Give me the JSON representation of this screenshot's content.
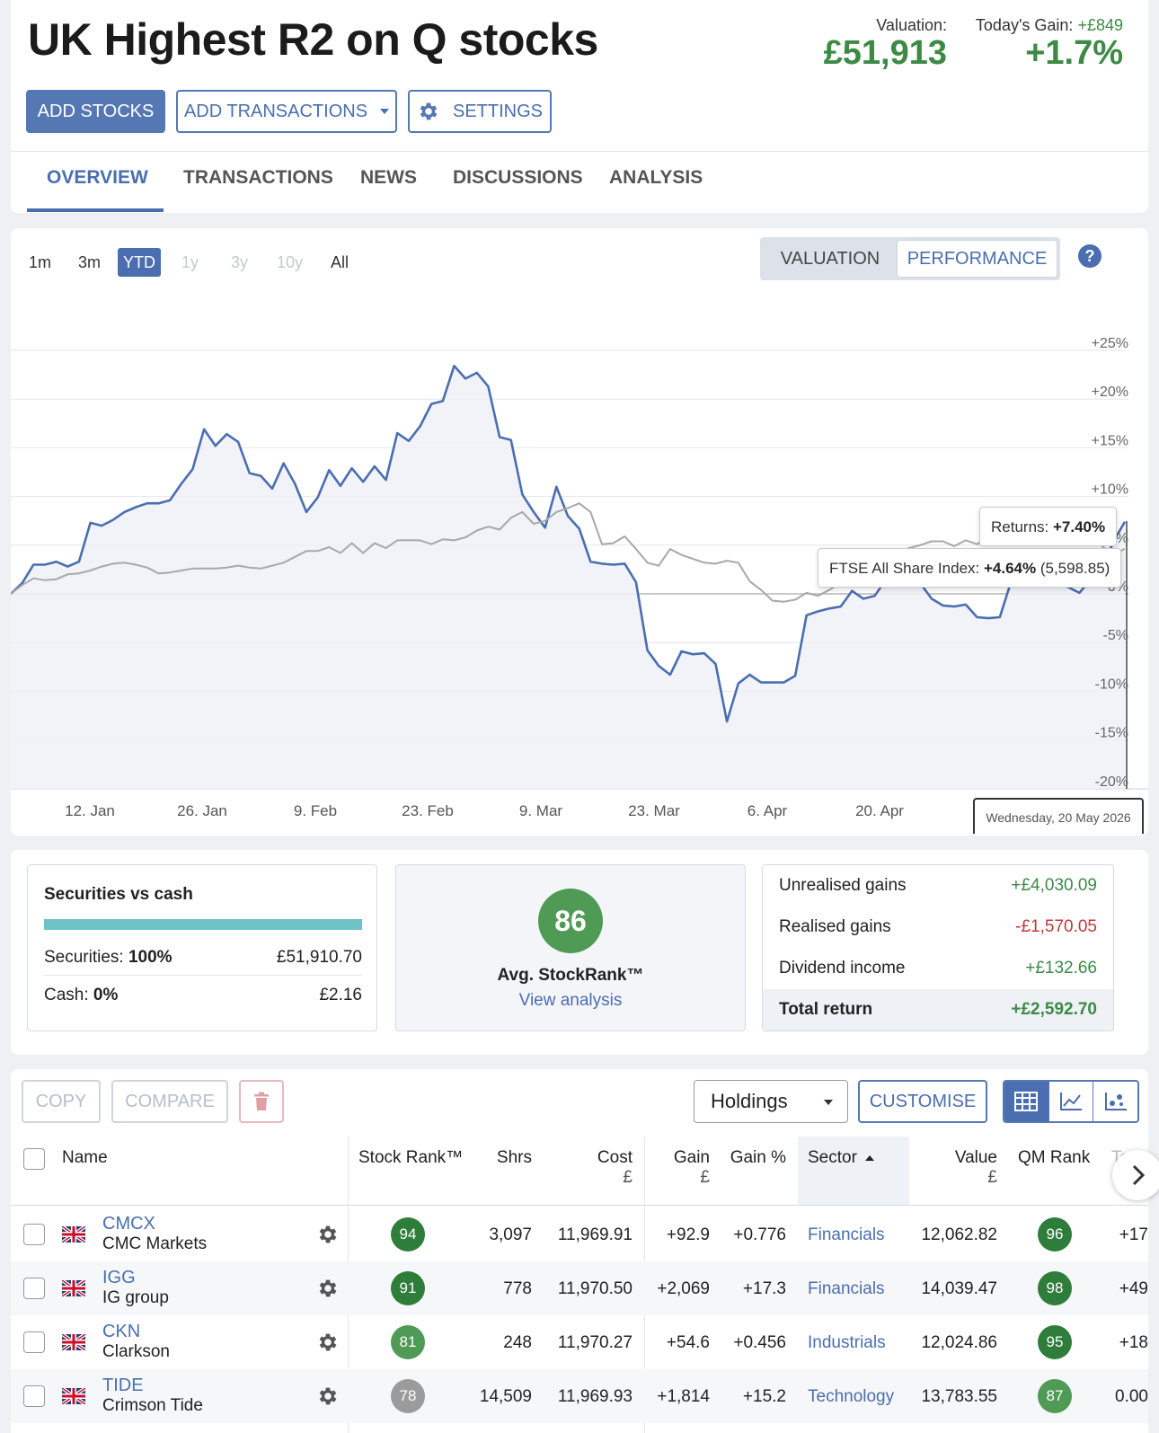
{
  "page": {
    "title": "UK Highest R2 on Q stocks",
    "valuation_label": "Valuation:",
    "valuation_value": "£51,913",
    "todays_gain_label": "Today's Gain:",
    "todays_gain_amount": "+£849",
    "todays_gain_pct": "+1.7%"
  },
  "actions": {
    "add_stocks": "ADD STOCKS",
    "add_transactions": "ADD TRANSACTIONS",
    "settings": "SETTINGS"
  },
  "tabs": [
    {
      "label": "OVERVIEW",
      "active": true
    },
    {
      "label": "TRANSACTIONS"
    },
    {
      "label": "NEWS"
    },
    {
      "label": "DISCUSSIONS"
    },
    {
      "label": "ANALYSIS"
    }
  ],
  "chart_controls": {
    "ranges": [
      {
        "label": "1m"
      },
      {
        "label": "3m"
      },
      {
        "label": "YTD",
        "active": true
      },
      {
        "label": "1y",
        "disabled": true
      },
      {
        "label": "3y",
        "disabled": true
      },
      {
        "label": "10y",
        "disabled": true
      },
      {
        "label": "All"
      }
    ],
    "modes": [
      "VALUATION",
      "PERFORMANCE"
    ],
    "active_mode": "PERFORMANCE",
    "help": "?"
  },
  "chart_data": {
    "type": "line",
    "x_ticks": [
      "12. Jan",
      "26. Jan",
      "9. Feb",
      "23. Feb",
      "9. Mar",
      "23. Mar",
      "6. Apr",
      "20. Apr"
    ],
    "y_ticks": [
      "+25%",
      "+20%",
      "+15%",
      "+10%",
      "+5%",
      "0%",
      "-5%",
      "-10%",
      "-15%",
      "-20%"
    ],
    "ylim": [
      -20,
      26
    ],
    "series": [
      {
        "name": "Returns",
        "color": "#4a6eb0",
        "values": [
          0,
          1.1,
          3,
          3,
          3.3,
          2.8,
          3.3,
          7.3,
          7,
          7.6,
          8.4,
          8.9,
          9.3,
          9.3,
          9.6,
          11.3,
          12.8,
          16.9,
          15.2,
          16.4,
          15.6,
          12.4,
          12.1,
          10.8,
          13.4,
          11.3,
          8.4,
          9.9,
          12.7,
          11.1,
          12.9,
          11.5,
          13.1,
          11.7,
          16.5,
          15.7,
          17.2,
          19.5,
          19.8,
          23.4,
          22.1,
          22.7,
          21.3,
          16.1,
          15.8,
          10.2,
          8.4,
          6.8,
          11,
          8,
          6.7,
          3.3,
          3.1,
          3,
          3.1,
          1.2,
          -5.8,
          -7.4,
          -8.3,
          -5.9,
          -6.2,
          -6.1,
          -7.2,
          -13.1,
          -9.2,
          -8.3,
          -9.1,
          -9.1,
          -9.1,
          -8.4,
          -2.2,
          -1.8,
          -1.5,
          -1.3,
          0.3,
          -0.5,
          -0.2,
          1.5,
          1.2,
          1.4,
          1.1,
          -0.5,
          -1.2,
          -1.3,
          -1.1,
          -2.4,
          -2.5,
          -2.4,
          1.3,
          1.9,
          1.4,
          1.3,
          1.2,
          0.7,
          0.1,
          1.5,
          2.4,
          5.4,
          7.4
        ]
      },
      {
        "name": "FTSE All Share Index",
        "color": "#a8a8a8",
        "values": [
          0,
          0.9,
          1.6,
          1.4,
          1.5,
          2,
          2.1,
          2.4,
          2.8,
          3.1,
          3.2,
          3,
          2.7,
          2.1,
          2.2,
          2.4,
          2.6,
          2.6,
          2.6,
          2.7,
          2.9,
          2.7,
          2.6,
          2.9,
          3.2,
          3.8,
          4.4,
          4.4,
          4.8,
          4.2,
          5.2,
          4.2,
          5.2,
          4.7,
          5.5,
          5.5,
          5.5,
          5.1,
          5.6,
          5.5,
          5.8,
          6.5,
          6.9,
          6.6,
          7.8,
          8.4,
          7.2,
          7.5,
          8.4,
          8.8,
          9.3,
          8.4,
          5.1,
          5.2,
          5.9,
          4.6,
          3.2,
          2.9,
          4.6,
          4,
          3.6,
          3.2,
          3.1,
          3.4,
          3.2,
          1.3,
          0.4,
          -0.7,
          -0.8,
          -0.6,
          0.1,
          -0.2,
          0.4,
          1.1,
          2,
          3.5,
          3.9,
          4.1,
          4.3,
          4.7,
          5,
          5.4,
          5.4,
          4.9,
          5.5,
          5.1,
          5.9,
          6.4,
          6.4,
          6.1,
          6.8,
          6.3,
          6.1,
          5.9,
          6.1,
          6.1,
          4.9,
          3.9,
          4.64
        ]
      }
    ],
    "tooltip_returns_label": "Returns: ",
    "tooltip_returns_value": "+7.40%",
    "tooltip_index_label": "FTSE All Share Index: ",
    "tooltip_index_value": "+4.64%",
    "tooltip_index_level": "(5,598.85)",
    "hover_date": "Wednesday, 20 May 2026"
  },
  "securities": {
    "title": "Securities vs cash",
    "securities_label": "Securities: ",
    "securities_pct": "100%",
    "securities_value": "£51,910.70",
    "securities_fraction": 1.0,
    "cash_label": "Cash: ",
    "cash_pct": "0%",
    "cash_value": "£2.16"
  },
  "stockrank": {
    "value": "86",
    "label": "Avg. StockRank™",
    "link": "View analysis"
  },
  "gains": [
    {
      "label": "Unrealised gains",
      "value": "+£4,030.09",
      "tone": "green"
    },
    {
      "label": "Realised gains",
      "value": "-£1,570.05",
      "tone": "red"
    },
    {
      "label": "Dividend income",
      "value": "+£132.66",
      "tone": "green"
    },
    {
      "label": "Total return",
      "value": "+£2,592.70",
      "tone": "green",
      "total": true
    }
  ],
  "table_toolbar": {
    "copy": "COPY",
    "compare": "COMPARE",
    "view_select": "Holdings",
    "customise": "CUSTOMISE"
  },
  "table": {
    "headers": {
      "name": "Name",
      "stock_rank": "Stock Rank™",
      "shrs": "Shrs",
      "cost": "Cost",
      "cost_unit": "£",
      "gain": "Gain",
      "gain_unit": "£",
      "gain_pct": "Gain %",
      "sector": "Sector",
      "value": "Value",
      "value_unit": "£",
      "qm_rank": "QM Rank",
      "today": "Toda"
    },
    "rows": [
      {
        "ticker": "CMCX",
        "name": "CMC Markets",
        "stock_rank": "94",
        "sr_color": "#2f7d3a",
        "shrs": "3,097",
        "cost": "11,969.91",
        "gain": "+92.9",
        "gain_pct": "+0.776",
        "sector": "Financials",
        "value": "12,062.82",
        "qm_rank": "96",
        "qm_color": "#2f7d3a",
        "today": "+17"
      },
      {
        "ticker": "IGG",
        "name": "IG group",
        "stock_rank": "91",
        "sr_color": "#2f7d3a",
        "shrs": "778",
        "cost": "11,970.50",
        "gain": "+2,069",
        "gain_pct": "+17.3",
        "sector": "Financials",
        "value": "14,039.47",
        "qm_rank": "98",
        "qm_color": "#2f7d3a",
        "today": "+49"
      },
      {
        "ticker": "CKN",
        "name": "Clarkson",
        "stock_rank": "81",
        "sr_color": "#4f9a55",
        "shrs": "248",
        "cost": "11,970.27",
        "gain": "+54.6",
        "gain_pct": "+0.456",
        "sector": "Industrials",
        "value": "12,024.86",
        "qm_rank": "95",
        "qm_color": "#2f7d3a",
        "today": "+18"
      },
      {
        "ticker": "TIDE",
        "name": "Crimson Tide",
        "stock_rank": "78",
        "sr_color": "#9b9b9b",
        "shrs": "14,509",
        "cost": "11,969.93",
        "gain": "+1,814",
        "gain_pct": "+15.2",
        "sector": "Technology",
        "value": "13,783.55",
        "qm_rank": "87",
        "qm_color": "#4f9a55",
        "today": "0.00"
      }
    ]
  }
}
